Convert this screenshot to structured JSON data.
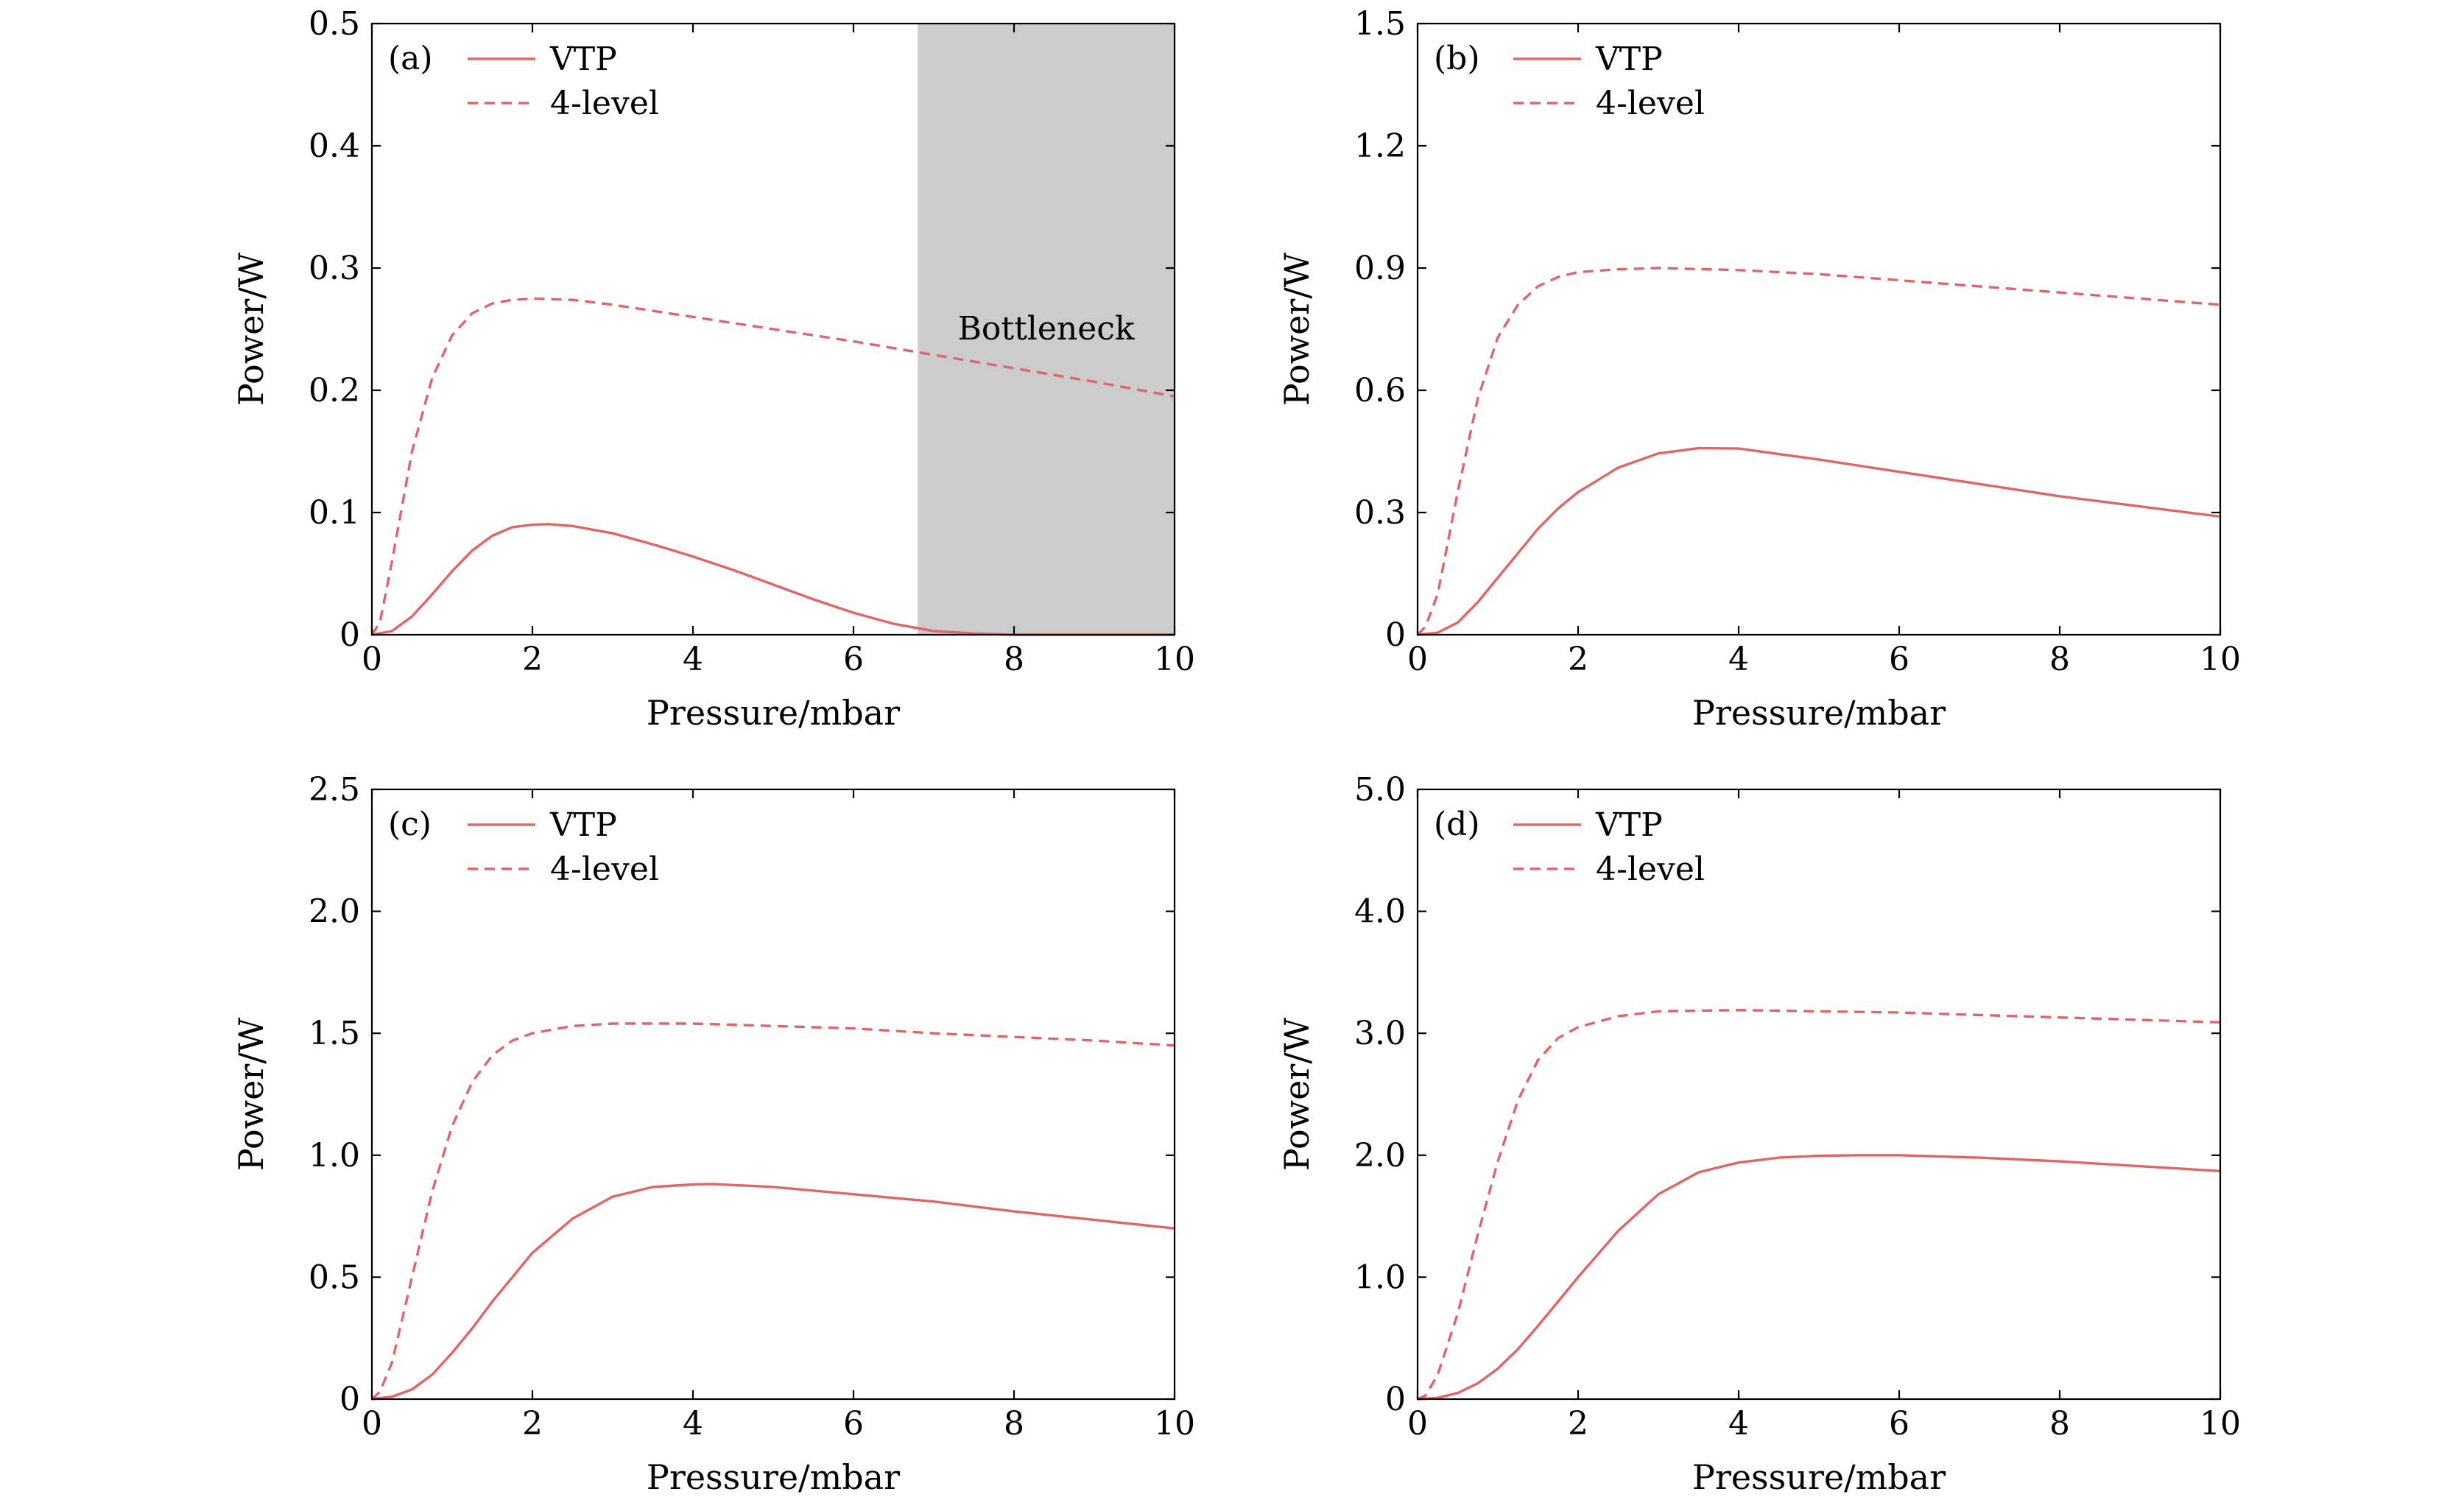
{
  "colors": {
    "series": "#e06666",
    "shade": "#cccccc",
    "axis": "#000000"
  },
  "chart_data": [
    {
      "type": "line",
      "panel": "(a)",
      "xlabel": "Pressure/mbar",
      "ylabel": "Power/W",
      "xlim": [
        0,
        10
      ],
      "ylim": [
        0,
        0.5
      ],
      "xticks": [
        0,
        2,
        4,
        6,
        8,
        10
      ],
      "xtick_labels": [
        "0",
        "2",
        "4",
        "6",
        "8",
        "10"
      ],
      "yticks": [
        0,
        0.1,
        0.2,
        0.3,
        0.4,
        0.5
      ],
      "ytick_labels": [
        "0",
        "0.1",
        "0.2",
        "0.3",
        "0.4",
        "0.5"
      ],
      "legend_position": "top-left",
      "shaded_region": {
        "x": [
          6.8,
          10
        ],
        "label": "Bottleneck"
      },
      "series": [
        {
          "name": "VTP",
          "style": "solid",
          "x": [
            0,
            0.25,
            0.5,
            0.75,
            1,
            1.25,
            1.5,
            1.75,
            2,
            2.2,
            2.5,
            3,
            3.5,
            4,
            4.5,
            5,
            5.5,
            6,
            6.5,
            7,
            7.5,
            8,
            8.5,
            9,
            10
          ],
          "y": [
            0,
            0.003,
            0.015,
            0.033,
            0.052,
            0.069,
            0.081,
            0.088,
            0.09,
            0.0905,
            0.089,
            0.083,
            0.074,
            0.064,
            0.053,
            0.041,
            0.029,
            0.018,
            0.009,
            0.003,
            0.001,
            0,
            0,
            0,
            0
          ]
        },
        {
          "name": "4-level",
          "style": "dashed",
          "x": [
            0,
            0.1,
            0.25,
            0.5,
            0.75,
            1,
            1.25,
            1.5,
            1.75,
            2,
            2.5,
            3,
            4,
            5,
            6,
            7,
            8,
            9,
            10
          ],
          "y": [
            0,
            0.01,
            0.06,
            0.15,
            0.21,
            0.245,
            0.263,
            0.271,
            0.274,
            0.275,
            0.274,
            0.27,
            0.26,
            0.25,
            0.24,
            0.229,
            0.218,
            0.207,
            0.195
          ]
        }
      ]
    },
    {
      "type": "line",
      "panel": "(b)",
      "xlabel": "Pressure/mbar",
      "ylabel": "Power/W",
      "xlim": [
        0,
        10
      ],
      "ylim": [
        0,
        1.5
      ],
      "xticks": [
        0,
        2,
        4,
        6,
        8,
        10
      ],
      "xtick_labels": [
        "0",
        "2",
        "4",
        "6",
        "8",
        "10"
      ],
      "yticks": [
        0,
        0.3,
        0.6,
        0.9,
        1.2,
        1.5
      ],
      "ytick_labels": [
        "0",
        "0.3",
        "0.6",
        "0.9",
        "1.2",
        "1.5"
      ],
      "legend_position": "top-left",
      "series": [
        {
          "name": "VTP",
          "style": "solid",
          "x": [
            0,
            0.25,
            0.5,
            0.75,
            1,
            1.25,
            1.5,
            1.75,
            2,
            2.5,
            3,
            3.5,
            4,
            5,
            6,
            7,
            8,
            9,
            10
          ],
          "y": [
            0,
            0.005,
            0.03,
            0.08,
            0.14,
            0.2,
            0.26,
            0.31,
            0.35,
            0.41,
            0.445,
            0.458,
            0.457,
            0.43,
            0.4,
            0.37,
            0.34,
            0.315,
            0.29
          ]
        },
        {
          "name": "4-level",
          "style": "dashed",
          "x": [
            0,
            0.1,
            0.25,
            0.5,
            0.75,
            1,
            1.25,
            1.5,
            1.75,
            2,
            2.5,
            3,
            4,
            5,
            6,
            7,
            8,
            9,
            10
          ],
          "y": [
            0,
            0.02,
            0.1,
            0.35,
            0.58,
            0.73,
            0.81,
            0.855,
            0.878,
            0.89,
            0.897,
            0.9,
            0.895,
            0.885,
            0.87,
            0.855,
            0.84,
            0.825,
            0.81
          ]
        }
      ]
    },
    {
      "type": "line",
      "panel": "(c)",
      "xlabel": "Pressure/mbar",
      "ylabel": "Power/W",
      "xlim": [
        0,
        10
      ],
      "ylim": [
        0,
        2.5
      ],
      "xticks": [
        0,
        2,
        4,
        6,
        8,
        10
      ],
      "xtick_labels": [
        "0",
        "2",
        "4",
        "6",
        "8",
        "10"
      ],
      "yticks": [
        0,
        0.5,
        1.0,
        1.5,
        2.0,
        2.5
      ],
      "ytick_labels": [
        "0",
        "0.5",
        "1.0",
        "1.5",
        "2.0",
        "2.5"
      ],
      "legend_position": "top-left",
      "series": [
        {
          "name": "VTP",
          "style": "solid",
          "x": [
            0,
            0.25,
            0.5,
            0.75,
            1,
            1.25,
            1.5,
            1.75,
            2,
            2.5,
            3,
            3.5,
            4,
            4.25,
            5,
            6,
            7,
            8,
            9,
            10
          ],
          "y": [
            0,
            0.01,
            0.04,
            0.1,
            0.19,
            0.29,
            0.4,
            0.5,
            0.6,
            0.74,
            0.83,
            0.87,
            0.88,
            0.882,
            0.87,
            0.84,
            0.81,
            0.77,
            0.735,
            0.7
          ]
        },
        {
          "name": "4-level",
          "style": "dashed",
          "x": [
            0,
            0.1,
            0.25,
            0.5,
            0.75,
            1,
            1.25,
            1.5,
            1.75,
            2,
            2.5,
            3,
            4,
            5,
            6,
            7,
            8,
            9,
            10
          ],
          "y": [
            0,
            0.03,
            0.15,
            0.5,
            0.85,
            1.12,
            1.3,
            1.41,
            1.47,
            1.5,
            1.53,
            1.54,
            1.54,
            1.53,
            1.52,
            1.5,
            1.485,
            1.47,
            1.45
          ]
        }
      ]
    },
    {
      "type": "line",
      "panel": "(d)",
      "xlabel": "Pressure/mbar",
      "ylabel": "Power/W",
      "xlim": [
        0,
        10
      ],
      "ylim": [
        0,
        5.0
      ],
      "xticks": [
        0,
        2,
        4,
        6,
        8,
        10
      ],
      "xtick_labels": [
        "0",
        "2",
        "4",
        "6",
        "8",
        "10"
      ],
      "yticks": [
        0,
        1.0,
        2.0,
        3.0,
        4.0,
        5.0
      ],
      "ytick_labels": [
        "0",
        "1.0",
        "2.0",
        "3.0",
        "4.0",
        "5.0"
      ],
      "legend_position": "top-left",
      "series": [
        {
          "name": "VTP",
          "style": "solid",
          "x": [
            0,
            0.25,
            0.5,
            0.75,
            1,
            1.25,
            1.5,
            1.75,
            2,
            2.5,
            3,
            3.5,
            4,
            4.5,
            5,
            5.5,
            6,
            7,
            8,
            9,
            10
          ],
          "y": [
            0,
            0.01,
            0.05,
            0.13,
            0.25,
            0.41,
            0.6,
            0.8,
            1.0,
            1.38,
            1.68,
            1.86,
            1.94,
            1.98,
            1.995,
            2.0,
            2.0,
            1.98,
            1.95,
            1.91,
            1.87
          ]
        },
        {
          "name": "4-level",
          "style": "dashed",
          "x": [
            0,
            0.1,
            0.25,
            0.5,
            0.75,
            1,
            1.25,
            1.5,
            1.75,
            2,
            2.5,
            3,
            4,
            5,
            6,
            7,
            8,
            9,
            10
          ],
          "y": [
            0,
            0.03,
            0.2,
            0.7,
            1.35,
            1.95,
            2.45,
            2.78,
            2.96,
            3.05,
            3.14,
            3.18,
            3.19,
            3.18,
            3.17,
            3.15,
            3.13,
            3.11,
            3.09
          ]
        }
      ]
    }
  ]
}
